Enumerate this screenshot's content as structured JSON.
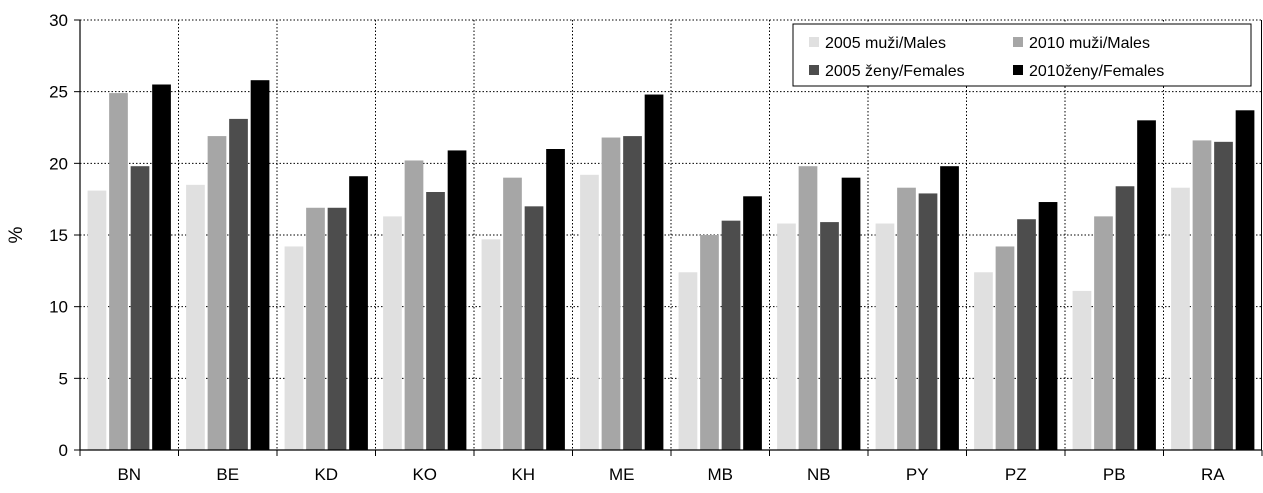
{
  "chart_data": {
    "type": "bar",
    "title": "",
    "xlabel": "",
    "ylabel": "%",
    "ylim": [
      0,
      30
    ],
    "yticks": [
      0,
      5,
      10,
      15,
      20,
      25,
      30
    ],
    "grid": true,
    "legend_position": "top-right",
    "categories": [
      "BN",
      "BE",
      "KD",
      "KO",
      "KH",
      "ME",
      "MB",
      "NB",
      "PY",
      "PZ",
      "PB",
      "RA"
    ],
    "series": [
      {
        "name": "2005 muži/Males",
        "color": "#e0e0e0",
        "values": [
          18.1,
          18.5,
          14.2,
          16.3,
          14.7,
          19.2,
          12.4,
          15.8,
          15.8,
          12.4,
          11.1,
          18.3
        ]
      },
      {
        "name": "2010 muži/Males",
        "color": "#a6a6a6",
        "values": [
          24.9,
          21.9,
          16.9,
          20.2,
          19.0,
          21.8,
          15.0,
          19.8,
          18.3,
          14.2,
          16.3,
          21.6
        ]
      },
      {
        "name": "2005 ženy/Females",
        "color": "#4d4d4d",
        "values": [
          19.8,
          23.1,
          16.9,
          18.0,
          17.0,
          21.9,
          16.0,
          15.9,
          17.9,
          16.1,
          18.4,
          21.5
        ]
      },
      {
        "name": "2010ženy/Females",
        "color": "#000000",
        "values": [
          25.5,
          25.8,
          19.1,
          20.9,
          21.0,
          24.8,
          17.7,
          19.0,
          19.8,
          17.3,
          23.0,
          23.7
        ]
      }
    ]
  }
}
